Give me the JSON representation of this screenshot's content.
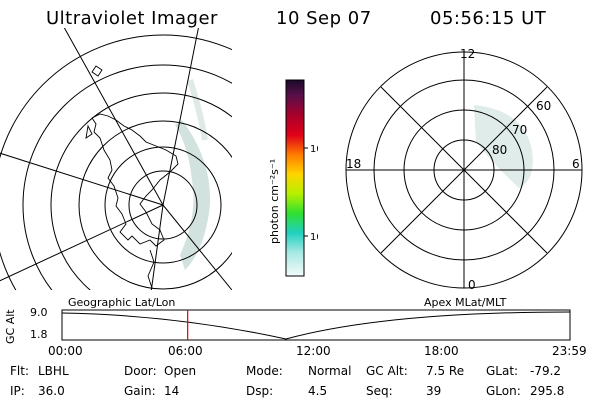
{
  "header": {
    "instrument": "Ultraviolet Imager",
    "date": "10 Sep 07",
    "time": "05:56:15 UT"
  },
  "colorbar": {
    "unit_label": "photon cm⁻²s⁻¹",
    "ticks": [
      "100",
      "10"
    ]
  },
  "polar_plot": {
    "clock_labels": {
      "top": "12",
      "left": "18",
      "right": "6",
      "bottom": "0"
    },
    "lat_labels": [
      "60",
      "70",
      "80"
    ]
  },
  "timeline": {
    "left_label": "Geographic Lat/Lon",
    "right_label": "Apex MLat/MLT",
    "axis_title": "GC Alt",
    "y_top": "9.0",
    "y_bottom": "1.8",
    "time_ticks": [
      "00:00",
      "06:00",
      "12:00",
      "18:00",
      "23:59"
    ],
    "marker_time": "05:56:15"
  },
  "info": [
    {
      "key": "Flt:",
      "value": "LBHL"
    },
    {
      "key": "Door:",
      "value": "Open"
    },
    {
      "key": "Mode:",
      "value": "Normal"
    },
    {
      "key": "GC Alt:",
      "value": "7.5 Re"
    },
    {
      "key": "GLat:",
      "value": "-79.2"
    },
    {
      "key": "IP:",
      "value": "36.0"
    },
    {
      "key": "Gain:",
      "value": "14"
    },
    {
      "key": "Dsp:",
      "value": "4.5"
    },
    {
      "key": "Seq:",
      "value": "39"
    },
    {
      "key": "GLon:",
      "value": "295.8"
    }
  ],
  "colors": {
    "marker": "#e00000",
    "aurora": "#cfe1dd"
  }
}
